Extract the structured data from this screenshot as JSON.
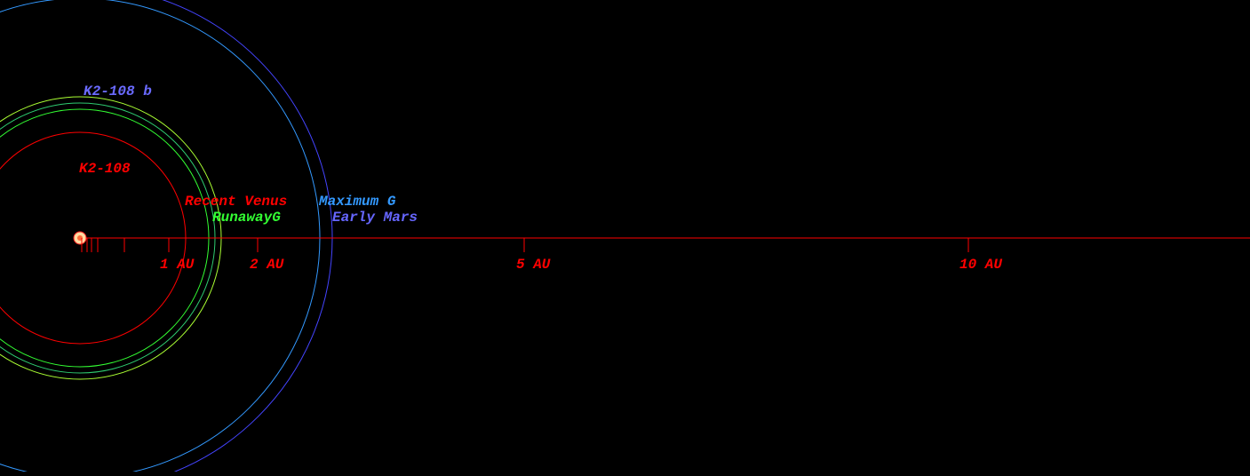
{
  "diagram": {
    "star_name": "K2-108",
    "planet_name": "K2-108 b",
    "zones": {
      "recent_venus": "Recent Venus",
      "runaway_greenhouse": "RunawayG",
      "maximum_greenhouse": "Maximum G",
      "early_mars": "Early Mars"
    },
    "scale_labels": {
      "au1": "1 AU",
      "au2": "2 AU",
      "au5": "5 AU",
      "au10": "10 AU"
    },
    "colors": {
      "background": "#000000",
      "axis": "#ff0000",
      "star_ring": "#ff2020",
      "planet_label": "#6a6aff",
      "recent_venus": "#ff0000",
      "runaway_greenhouse": "#33ff33",
      "green_ring": "#2ecc71",
      "yellow_green_ring": "#aaff33",
      "maximum_greenhouse": "#3399ff",
      "early_mars": "#6666ff",
      "outer_ring": "#4444ff",
      "star_fill": "#ffd9a0"
    }
  }
}
